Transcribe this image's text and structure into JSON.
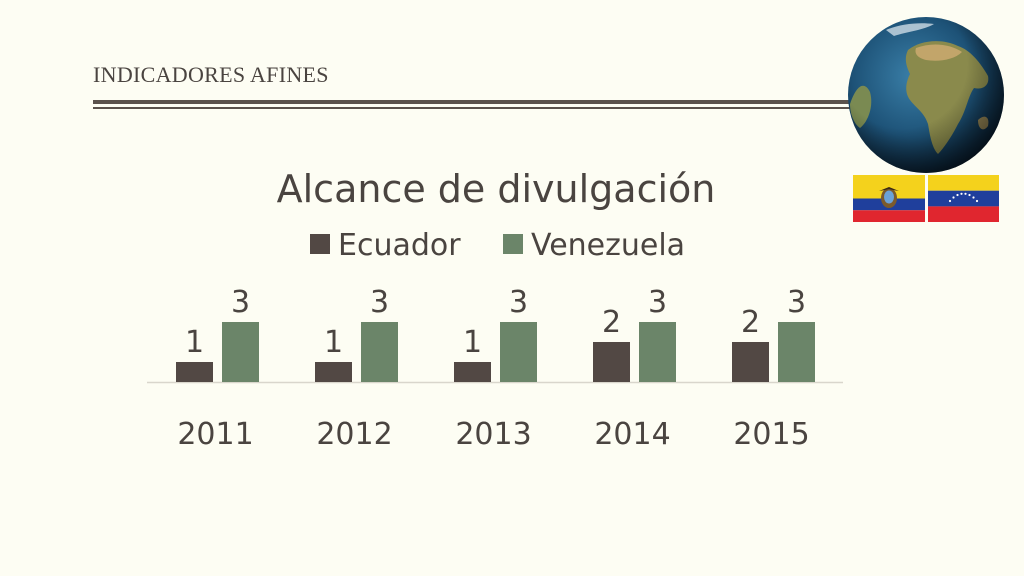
{
  "header": {
    "title": "INDICADORES AFINES"
  },
  "chart_data": {
    "type": "bar",
    "title": "Alcance de divulgación",
    "categories": [
      "2011",
      "2012",
      "2013",
      "2014",
      "2015"
    ],
    "series": [
      {
        "name": "Ecuador",
        "values": [
          1,
          1,
          1,
          2,
          2
        ],
        "color": "#524844"
      },
      {
        "name": "Venezuela",
        "values": [
          3,
          3,
          3,
          3,
          3
        ],
        "color": "#6b8569"
      }
    ],
    "ylim": [
      0,
      3
    ],
    "legend_position": "top",
    "grid": false,
    "data_labels": true
  },
  "icons": [
    "globe-icon",
    "ecuador-flag-icon",
    "venezuela-flag-icon"
  ]
}
